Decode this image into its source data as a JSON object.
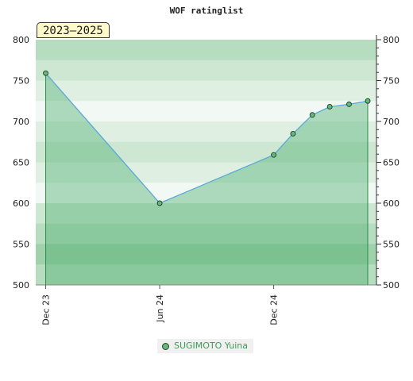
{
  "chart_data": {
    "type": "area",
    "title": "WOF ratinglist",
    "period_label": "2023–2025",
    "xlabel": "",
    "ylabel": "",
    "ylim": [
      500,
      800
    ],
    "xlim": [
      "2023-11-15",
      "2025-05-15"
    ],
    "yticks": [
      500,
      550,
      600,
      650,
      700,
      750,
      800
    ],
    "xticks": [
      {
        "date": "2023-12-01",
        "label": "Dec 23"
      },
      {
        "date": "2024-06-01",
        "label": "Jun 24"
      },
      {
        "date": "2024-12-01",
        "label": "Dec 24"
      }
    ],
    "grid": false,
    "right_axis": true,
    "legend_position": "bottom-center",
    "series": [
      {
        "name": "SUGIMOTO Yuina",
        "color": "#5aa8d8",
        "fill": "#4caf6e",
        "marker_color": "#66b77a",
        "points": [
          {
            "x": "2023-12-01",
            "y": 759
          },
          {
            "x": "2024-06-01",
            "y": 600
          },
          {
            "x": "2024-12-01",
            "y": 659
          },
          {
            "x": "2025-01-01",
            "y": 685
          },
          {
            "x": "2025-02-01",
            "y": 708
          },
          {
            "x": "2025-03-01",
            "y": 718
          },
          {
            "x": "2025-04-01",
            "y": 721
          },
          {
            "x": "2025-05-01",
            "y": 725
          }
        ]
      }
    ]
  }
}
